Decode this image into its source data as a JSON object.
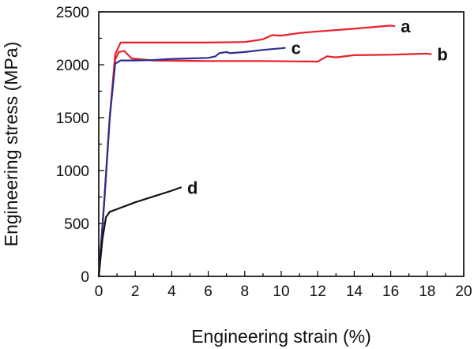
{
  "chart_data": {
    "type": "line",
    "xlabel": "Engineering strain (%)",
    "ylabel": "Engineering stress (MPa)",
    "xlim": [
      0,
      20
    ],
    "ylim": [
      0,
      2500
    ],
    "xticks": [
      0,
      2,
      4,
      6,
      8,
      10,
      12,
      14,
      16,
      18,
      20
    ],
    "yticks": [
      0,
      500,
      1000,
      1500,
      2000,
      2500
    ],
    "grid": false,
    "series": [
      {
        "name": "a",
        "color": "#e8202a",
        "points": [
          [
            0,
            0
          ],
          [
            0.3,
            700
          ],
          [
            0.6,
            1500
          ],
          [
            0.9,
            2100
          ],
          [
            1.2,
            2210
          ],
          [
            2,
            2210
          ],
          [
            4,
            2210
          ],
          [
            6,
            2210
          ],
          [
            8,
            2215
          ],
          [
            9,
            2240
          ],
          [
            9.5,
            2280
          ],
          [
            10,
            2275
          ],
          [
            11,
            2300
          ],
          [
            12,
            2315
          ],
          [
            14,
            2340
          ],
          [
            16,
            2370
          ],
          [
            16.2,
            2365
          ]
        ]
      },
      {
        "name": "b",
        "color": "#e8202a",
        "points": [
          [
            0,
            0
          ],
          [
            0.3,
            700
          ],
          [
            0.6,
            1500
          ],
          [
            0.9,
            2050
          ],
          [
            1.1,
            2120
          ],
          [
            1.4,
            2130
          ],
          [
            1.8,
            2060
          ],
          [
            3,
            2040
          ],
          [
            6,
            2035
          ],
          [
            9,
            2035
          ],
          [
            12,
            2030
          ],
          [
            12.5,
            2080
          ],
          [
            13,
            2070
          ],
          [
            14,
            2090
          ],
          [
            16,
            2095
          ],
          [
            18,
            2105
          ],
          [
            18.2,
            2100
          ]
        ]
      },
      {
        "name": "c",
        "color": "#2b2f8f",
        "points": [
          [
            0,
            0
          ],
          [
            0.3,
            700
          ],
          [
            0.6,
            1500
          ],
          [
            0.9,
            2010
          ],
          [
            1.2,
            2040
          ],
          [
            2,
            2040
          ],
          [
            3,
            2045
          ],
          [
            4,
            2055
          ],
          [
            5,
            2060
          ],
          [
            6,
            2065
          ],
          [
            6.4,
            2080
          ],
          [
            6.6,
            2110
          ],
          [
            7,
            2120
          ],
          [
            7.2,
            2110
          ],
          [
            8,
            2120
          ],
          [
            9,
            2140
          ],
          [
            10,
            2155
          ],
          [
            10.2,
            2160
          ]
        ]
      },
      {
        "name": "d",
        "color": "#111111",
        "points": [
          [
            0,
            0
          ],
          [
            0.2,
            350
          ],
          [
            0.4,
            560
          ],
          [
            0.6,
            610
          ],
          [
            1,
            635
          ],
          [
            2,
            700
          ],
          [
            3,
            755
          ],
          [
            4,
            810
          ],
          [
            4.5,
            840
          ]
        ]
      }
    ]
  }
}
